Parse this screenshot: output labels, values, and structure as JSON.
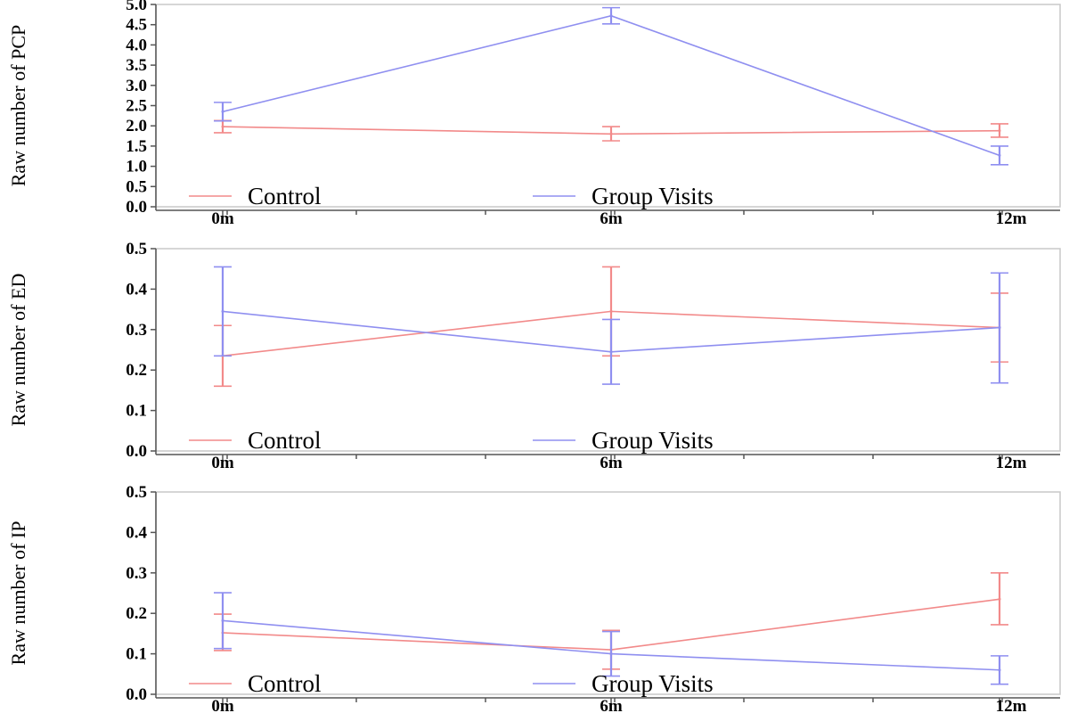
{
  "chart_data": [
    {
      "type": "line",
      "ylabel": "Raw number of PCP",
      "categories": [
        "0m",
        "6m",
        "12m"
      ],
      "ylim": [
        0,
        5
      ],
      "yticks": [
        "0.0",
        "0.5",
        "1.0",
        "1.5",
        "2.0",
        "2.5",
        "3.0",
        "3.5",
        "4.0",
        "4.5",
        "5.0"
      ],
      "legend": "bottom",
      "series": [
        {
          "name": "Control",
          "color": "#f28a8a",
          "values": [
            1.98,
            1.8,
            1.88
          ],
          "error_low": [
            1.83,
            1.63,
            1.72
          ],
          "error_high": [
            2.13,
            1.98,
            2.05
          ]
        },
        {
          "name": "Group Visits",
          "color": "#8f8ff0",
          "values": [
            2.35,
            4.72,
            1.27
          ],
          "error_low": [
            2.12,
            4.52,
            1.04
          ],
          "error_high": [
            2.58,
            4.92,
            1.5
          ]
        }
      ]
    },
    {
      "type": "line",
      "ylabel": "Raw number of ED",
      "categories": [
        "0m",
        "6m",
        "12m"
      ],
      "ylim": [
        0,
        0.5
      ],
      "yticks": [
        "0.0",
        "0.1",
        "0.2",
        "0.3",
        "0.4",
        "0.5"
      ],
      "legend": "bottom",
      "series": [
        {
          "name": "Control",
          "color": "#f28a8a",
          "values": [
            0.235,
            0.345,
            0.305
          ],
          "error_low": [
            0.16,
            0.235,
            0.22
          ],
          "error_high": [
            0.31,
            0.455,
            0.39
          ]
        },
        {
          "name": "Group Visits",
          "color": "#8f8ff0",
          "values": [
            0.345,
            0.245,
            0.305
          ],
          "error_low": [
            0.235,
            0.165,
            0.168
          ],
          "error_high": [
            0.455,
            0.325,
            0.44
          ]
        }
      ]
    },
    {
      "type": "line",
      "ylabel": "Raw number of IP",
      "categories": [
        "0m",
        "6m",
        "12m"
      ],
      "ylim": [
        0,
        0.5
      ],
      "yticks": [
        "0.0",
        "0.1",
        "0.2",
        "0.3",
        "0.4",
        "0.5"
      ],
      "legend": "bottom",
      "series": [
        {
          "name": "Control",
          "color": "#f28a8a",
          "values": [
            0.152,
            0.11,
            0.235
          ],
          "error_low": [
            0.108,
            0.062,
            0.172
          ],
          "error_high": [
            0.198,
            0.158,
            0.3
          ]
        },
        {
          "name": "Group Visits",
          "color": "#8f8ff0",
          "values": [
            0.182,
            0.1,
            0.06
          ],
          "error_low": [
            0.113,
            0.045,
            0.025
          ],
          "error_high": [
            0.251,
            0.155,
            0.095
          ]
        }
      ]
    }
  ]
}
